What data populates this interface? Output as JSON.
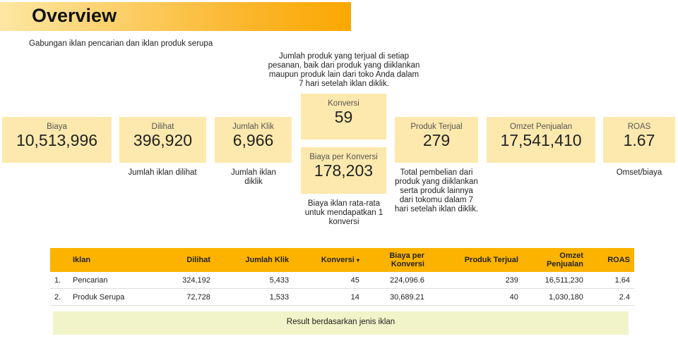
{
  "header": {
    "title": "Overview",
    "subtitle": "Gabungan iklan pencarian dan iklan produk serupa"
  },
  "cards": {
    "biaya": {
      "label": "Biaya",
      "value": "10,513,996"
    },
    "dilihat": {
      "label": "Dilihat",
      "value": "396,920",
      "note": "Jumlah iklan dilihat"
    },
    "klik": {
      "label": "Jumlah Klik",
      "value": "6,966",
      "note": "Jumlah iklan diklik"
    },
    "konversi": {
      "label": "Konversi",
      "value": "59",
      "note": "Jumlah produk yang terjual di setiap pesanan, baik dari produk yang diiklankan maupun produk lain dari toko Anda dalam 7 hari setelah iklan diklik."
    },
    "bpk": {
      "label": "Biaya per Konversi",
      "value": "178,203",
      "note": "Biaya iklan rata-rata untuk mendapatkan 1 konversi"
    },
    "produk": {
      "label": "Produk Terjual",
      "value": "279",
      "note": "Total pembelian dari produk yang diiklankan serta produk lainnya dari tokomu dalam 7 hari setelah iklan diklik."
    },
    "omzet": {
      "label": "Omzet Penjualan",
      "value": "17,541,410"
    },
    "roas": {
      "label": "ROAS",
      "value": "1.67",
      "note": "Omset/biaya"
    }
  },
  "table": {
    "headers": [
      "Iklan",
      "Dilihat",
      "Jumlah Klik",
      "Konversi",
      "Biaya per Konversi",
      "Produk Terjual",
      "Omzet Penjualan",
      "ROAS"
    ],
    "sort_icon": "▾",
    "rows": [
      {
        "no": "1.",
        "iklan": "Pencarian",
        "dilihat": "324,192",
        "klik": "5,433",
        "konversi": "45",
        "bpk": "224,096.6",
        "produk": "239",
        "omzet": "16,511,230",
        "roas": "1.64"
      },
      {
        "no": "2.",
        "iklan": "Produk Serupa",
        "dilihat": "72,728",
        "klik": "1,533",
        "konversi": "14",
        "bpk": "30,689.21",
        "produk": "40",
        "omzet": "1,030,180",
        "roas": "2.4"
      }
    ]
  },
  "footer": "Result berdasarkan jenis iklan",
  "colors": {
    "accent": "#fbb300",
    "card": "#fde9ad",
    "footer_bg": "#f1f4c8"
  }
}
